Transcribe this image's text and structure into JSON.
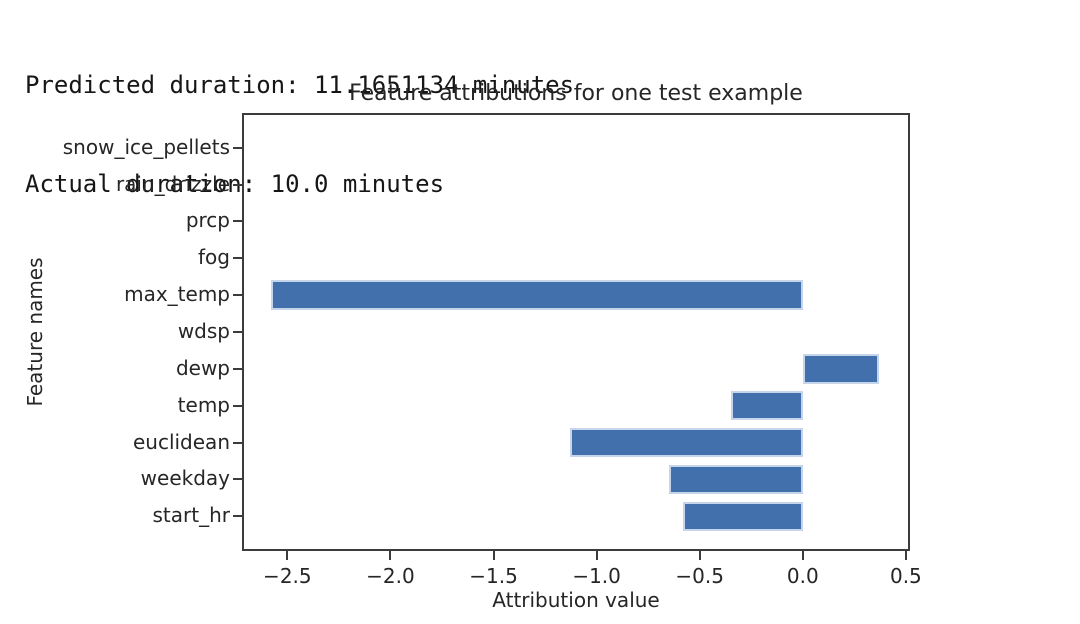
{
  "header": {
    "line1": "Predicted duration: 11.1651134 minutes",
    "line2": "Actual duration: 10.0 minutes"
  },
  "chart_data": {
    "type": "bar",
    "orientation": "horizontal",
    "title": "Feature attributions for one test example",
    "xlabel": "Attribution value",
    "ylabel": "Feature names",
    "categories": [
      "snow_ice_pellets",
      "rain_drizzle",
      "prcp",
      "fog",
      "max_temp",
      "wdsp",
      "dewp",
      "temp",
      "euclidean",
      "weekday",
      "start_hr"
    ],
    "values": [
      0,
      0,
      0,
      0,
      -2.58,
      0,
      0.37,
      -0.35,
      -1.13,
      -0.65,
      -0.58
    ],
    "xticks": [
      -2.5,
      -2.0,
      -1.5,
      -1.0,
      -0.5,
      0.0,
      0.5
    ],
    "xtick_labels": [
      "−2.5",
      "−2.0",
      "−1.5",
      "−1.0",
      "−0.5",
      "0.0",
      "0.5"
    ],
    "xlim": [
      -2.72,
      0.52
    ],
    "bar_height_frac": 0.8,
    "grid": false,
    "legend": null,
    "bar_color": "#4170ad",
    "bar_edge_color": "#c6d5ea",
    "spine_color": "#3c3c3c"
  }
}
